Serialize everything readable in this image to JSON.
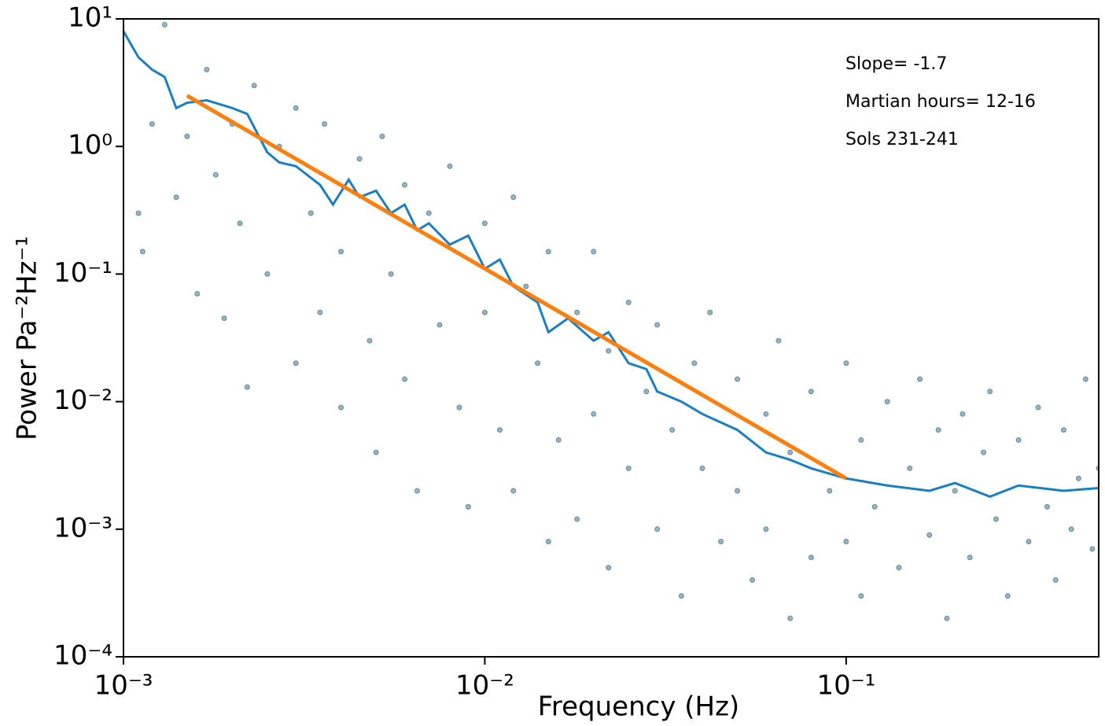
{
  "chart_data": {
    "type": "scatter",
    "xlabel": "Frequency (Hz)",
    "ylabel": "Power Pa⁻²Hz⁻¹",
    "log_x": true,
    "log_y": true,
    "xlim": [
      0.001,
      0.5
    ],
    "ylim": [
      0.0001,
      10
    ],
    "xticks": [
      {
        "value": 0.001,
        "label": "10⁻³"
      },
      {
        "value": 0.01,
        "label": "10⁻²"
      },
      {
        "value": 0.1,
        "label": "10⁻¹"
      }
    ],
    "yticks": [
      {
        "value": 0.0001,
        "label": "10⁻⁴"
      },
      {
        "value": 0.001,
        "label": "10⁻³"
      },
      {
        "value": 0.01,
        "label": "10⁻²"
      },
      {
        "value": 0.1,
        "label": "10⁻¹"
      },
      {
        "value": 1,
        "label": "10⁰"
      },
      {
        "value": 10,
        "label": "10¹"
      }
    ],
    "annotations": [
      "Slope= -1.7",
      "Martian hours= 12-16",
      "Sols 231-241"
    ],
    "series": [
      {
        "type": "scatter",
        "color": "#1f5a6e",
        "x": [
          0.0011,
          0.0012,
          0.00113,
          0.0013,
          0.0014,
          0.0015,
          0.0016,
          0.0017,
          0.0018,
          0.0019,
          0.002,
          0.0021,
          0.0022,
          0.0023,
          0.0025,
          0.0027,
          0.003,
          0.003,
          0.0033,
          0.0035,
          0.0036,
          0.004,
          0.004,
          0.0045,
          0.0048,
          0.005,
          0.0052,
          0.0055,
          0.006,
          0.006,
          0.0065,
          0.007,
          0.0075,
          0.008,
          0.0085,
          0.009,
          0.01,
          0.01,
          0.011,
          0.012,
          0.012,
          0.013,
          0.014,
          0.015,
          0.015,
          0.016,
          0.018,
          0.018,
          0.02,
          0.02,
          0.022,
          0.022,
          0.025,
          0.025,
          0.028,
          0.03,
          0.03,
          0.033,
          0.035,
          0.038,
          0.04,
          0.042,
          0.045,
          0.05,
          0.05,
          0.055,
          0.06,
          0.06,
          0.065,
          0.07,
          0.07,
          0.08,
          0.08,
          0.09,
          0.1,
          0.1,
          0.11,
          0.11,
          0.12,
          0.13,
          0.14,
          0.15,
          0.16,
          0.17,
          0.18,
          0.19,
          0.2,
          0.21,
          0.22,
          0.24,
          0.25,
          0.26,
          0.28,
          0.3,
          0.32,
          0.34,
          0.36,
          0.38,
          0.4,
          0.42,
          0.44,
          0.46,
          0.48,
          0.5
        ],
        "values": [
          0.3,
          1.5,
          0.15,
          9,
          0.4,
          1.2,
          0.07,
          4,
          0.6,
          0.045,
          1.5,
          0.25,
          0.013,
          3,
          0.1,
          1,
          0.02,
          2,
          0.3,
          0.05,
          1.5,
          0.15,
          0.009,
          0.8,
          0.03,
          0.004,
          1.2,
          0.1,
          0.5,
          0.015,
          0.002,
          0.3,
          0.04,
          0.7,
          0.009,
          0.0015,
          0.25,
          0.05,
          0.006,
          0.4,
          0.002,
          0.08,
          0.02,
          0.15,
          0.0008,
          0.005,
          0.05,
          0.0012,
          0.15,
          0.008,
          0.025,
          0.0005,
          0.06,
          0.003,
          0.012,
          0.04,
          0.001,
          0.006,
          0.0003,
          0.02,
          0.003,
          0.05,
          0.0008,
          0.015,
          0.002,
          0.0004,
          0.008,
          0.001,
          0.03,
          0.004,
          0.0002,
          0.012,
          0.0006,
          0.002,
          0.02,
          0.0008,
          0.005,
          0.0003,
          0.0015,
          0.01,
          0.0005,
          0.003,
          0.015,
          0.0009,
          0.006,
          0.0002,
          0.002,
          0.008,
          0.0006,
          0.004,
          0.012,
          0.0012,
          0.0003,
          0.005,
          0.0008,
          0.009,
          0.0015,
          0.0004,
          0.006,
          0.001,
          0.0025,
          0.015,
          0.0007,
          0.003
        ]
      },
      {
        "type": "line",
        "color": "#1a7fc1",
        "x": [
          0.001,
          0.0011,
          0.0012,
          0.0013,
          0.0014,
          0.0015,
          0.0017,
          0.002,
          0.0022,
          0.0025,
          0.0027,
          0.003,
          0.0035,
          0.0038,
          0.0042,
          0.0045,
          0.005,
          0.0055,
          0.006,
          0.0065,
          0.007,
          0.008,
          0.009,
          0.01,
          0.011,
          0.012,
          0.014,
          0.015,
          0.017,
          0.02,
          0.022,
          0.025,
          0.028,
          0.03,
          0.035,
          0.04,
          0.05,
          0.06,
          0.07,
          0.08,
          0.1,
          0.13,
          0.17,
          0.2,
          0.25,
          0.3,
          0.4,
          0.5
        ],
        "values": [
          8,
          5,
          4,
          3.5,
          2,
          2.2,
          2.3,
          2,
          1.8,
          0.9,
          0.75,
          0.7,
          0.5,
          0.35,
          0.55,
          0.4,
          0.45,
          0.3,
          0.35,
          0.22,
          0.25,
          0.17,
          0.2,
          0.11,
          0.13,
          0.08,
          0.06,
          0.035,
          0.045,
          0.03,
          0.035,
          0.02,
          0.018,
          0.012,
          0.01,
          0.008,
          0.006,
          0.004,
          0.0035,
          0.003,
          0.0025,
          0.0022,
          0.002,
          0.0023,
          0.0018,
          0.0022,
          0.002,
          0.0021
        ]
      },
      {
        "type": "line",
        "color": "#ff7f0e",
        "x": [
          0.0015,
          0.1
        ],
        "values": [
          2.5,
          0.0025
        ]
      }
    ]
  }
}
